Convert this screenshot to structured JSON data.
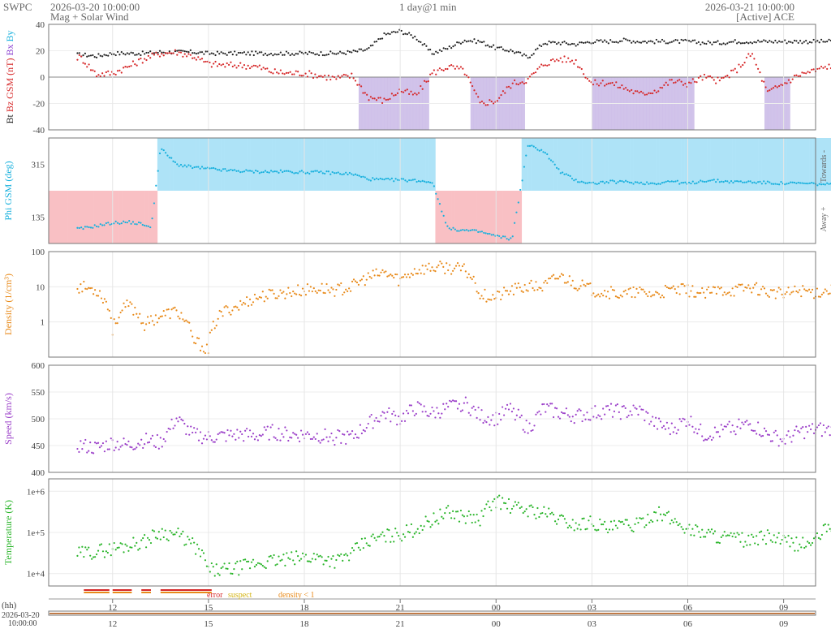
{
  "header": {
    "org": "SWPC",
    "start_time": "2026-03-20 10:00:00",
    "subtitle": "Mag + Solar Wind",
    "span": "1 day@1 min",
    "end_time": "2026-03-21 10:00:00",
    "source": "[Active] ACE"
  },
  "colors": {
    "bt": "#222222",
    "bz": "#d62728",
    "phi": "#17b0dd",
    "density": "#e88a1a",
    "speed": "#9b3fc9",
    "temperature": "#2ab52a",
    "bz_shade": "#c9b8e6",
    "towards_shade": "#aee3f7",
    "away_shade": "#f9c0c4"
  },
  "chart_data": [
    {
      "type": "scatter",
      "panel": "mag",
      "ylabel_parts": [
        "Bt",
        "Bz GSM (nT)",
        "Bx",
        "By"
      ],
      "ylim": [
        -40,
        40
      ],
      "yticks": [
        "40",
        "20",
        "0",
        "-20",
        "-40"
      ],
      "series": [
        {
          "name": "Bt",
          "x": [
            11,
            11.5,
            12,
            12.5,
            13,
            13.5,
            14,
            14.5,
            15,
            15.5,
            16,
            16.5,
            17,
            17.5,
            18,
            18.5,
            19,
            19.5,
            20,
            20.5,
            21,
            21.5,
            22,
            22.5,
            23,
            23.5,
            24,
            24.5,
            25,
            25.5,
            26,
            26.5,
            27,
            27.5,
            28,
            28.5,
            29,
            29.5,
            30,
            30.5,
            31,
            31.5,
            32,
            32.5,
            33,
            33.5,
            34,
            34.5
          ],
          "values": [
            17,
            16,
            18,
            18,
            18,
            19,
            19,
            19,
            18,
            18,
            18,
            18,
            18,
            18,
            18,
            18,
            18,
            19,
            21,
            32,
            35,
            30,
            18,
            22,
            28,
            27,
            22,
            20,
            15,
            26,
            26,
            25,
            27,
            27,
            28,
            27,
            27,
            27,
            27,
            26,
            26,
            27,
            27,
            27,
            27,
            27,
            27,
            27
          ]
        },
        {
          "name": "Bz",
          "x": [
            11,
            11.5,
            12,
            12.5,
            13,
            13.5,
            14,
            14.5,
            15,
            15.5,
            16,
            16.5,
            17,
            17.5,
            18,
            18.5,
            19,
            19.5,
            20,
            20.5,
            21,
            21.5,
            22,
            22.5,
            23,
            23.5,
            24,
            24.5,
            25,
            25.5,
            26,
            26.5,
            27,
            27.5,
            28,
            28.5,
            29,
            29.5,
            30,
            30.5,
            31,
            31.5,
            32,
            32.5,
            33,
            33.5,
            34,
            34.5
          ],
          "values": [
            15,
            2,
            3,
            8,
            14,
            18,
            19,
            16,
            10,
            9,
            9,
            8,
            4,
            3,
            3,
            1,
            -1,
            1,
            -15,
            -18,
            -10,
            -14,
            3,
            8,
            5,
            -20,
            -18,
            -5,
            -2,
            10,
            14,
            12,
            -5,
            -4,
            -8,
            -13,
            -10,
            -3,
            -5,
            0,
            -3,
            5,
            18,
            -12,
            -5,
            2,
            5,
            9
          ]
        }
      ]
    },
    {
      "type": "scatter",
      "panel": "phi",
      "ylabel": "Phi GSM (deg)",
      "ylim": [
        45,
        405
      ],
      "yticks": [
        "315",
        "135"
      ],
      "right_labels": [
        "Towards -",
        "Away +"
      ],
      "series": [
        {
          "name": "Phi",
          "x": [
            11,
            11.5,
            12,
            12.5,
            13,
            13.2,
            13.5,
            14,
            14.5,
            15,
            15.5,
            16,
            16.5,
            17,
            17.5,
            18,
            18.5,
            19,
            19.5,
            20,
            20.5,
            21,
            21.5,
            22,
            22.5,
            23,
            23.5,
            24,
            24.5,
            25,
            25.5,
            26,
            26.5,
            27,
            27.5,
            28,
            28.5,
            29,
            29.5,
            30,
            30.5,
            31,
            31.5,
            32,
            32.5,
            33,
            33.5,
            34,
            34.5
          ],
          "values": [
            95,
            105,
            115,
            118,
            110,
            95,
            370,
            315,
            305,
            300,
            295,
            292,
            290,
            290,
            290,
            288,
            288,
            285,
            282,
            265,
            262,
            262,
            260,
            255,
            95,
            90,
            85,
            70,
            60,
            380,
            360,
            290,
            260,
            250,
            255,
            255,
            252,
            250,
            258,
            248,
            260,
            258,
            255,
            255,
            252,
            250,
            250,
            248,
            245
          ]
        }
      ]
    },
    {
      "type": "scatter",
      "panel": "density",
      "ylabel": "Density (1/cm³)",
      "scale": "log",
      "ylim": [
        0.1,
        100
      ],
      "yticks": [
        "100",
        "10",
        "1"
      ],
      "series": [
        {
          "name": "Density",
          "x": [
            11,
            11.5,
            12,
            12.5,
            13,
            13.5,
            14,
            14.5,
            15,
            15.5,
            16,
            16.5,
            17,
            17.5,
            18,
            18.5,
            19,
            19.5,
            20,
            20.5,
            21,
            21.5,
            22,
            22.5,
            23,
            23.5,
            24,
            24.5,
            25,
            25.5,
            26,
            26.5,
            27,
            27.5,
            28,
            28.5,
            29,
            29.5,
            30,
            30.5,
            31,
            31.5,
            32,
            32.5,
            33,
            33.5,
            34,
            34.5
          ],
          "values": [
            10,
            8,
            0.6,
            3,
            0.8,
            1.5,
            2,
            0.3,
            0.15,
            2,
            3,
            5,
            6,
            7,
            8,
            9,
            8,
            10,
            18,
            25,
            15,
            30,
            35,
            35,
            30,
            6,
            5,
            8,
            10,
            10,
            20,
            12,
            8,
            7,
            6,
            7,
            6,
            8,
            8,
            6,
            8,
            8,
            10,
            7,
            6,
            8,
            7,
            8
          ]
        }
      ]
    },
    {
      "type": "scatter",
      "panel": "speed",
      "ylabel": "Speed (km/s)",
      "ylim": [
        400,
        600
      ],
      "yticks": [
        "600",
        "550",
        "500",
        "450",
        "400"
      ],
      "series": [
        {
          "name": "Speed",
          "x": [
            11,
            11.5,
            12,
            12.5,
            13,
            13.5,
            14,
            14.5,
            15,
            15.5,
            16,
            16.5,
            17,
            17.5,
            18,
            18.5,
            19,
            19.5,
            20,
            20.5,
            21,
            21.5,
            22,
            22.5,
            23,
            23.5,
            24,
            24.5,
            25,
            25.5,
            26,
            26.5,
            27,
            27.5,
            28,
            28.5,
            29,
            29.5,
            30,
            30.5,
            31,
            31.5,
            32,
            32.5,
            33,
            33.5,
            34,
            34.5
          ],
          "values": [
            450,
            445,
            455,
            450,
            460,
            455,
            500,
            470,
            465,
            468,
            470,
            468,
            475,
            470,
            470,
            468,
            465,
            465,
            490,
            510,
            500,
            520,
            510,
            520,
            530,
            505,
            500,
            520,
            480,
            520,
            510,
            505,
            510,
            515,
            512,
            515,
            490,
            480,
            500,
            470,
            475,
            485,
            490,
            470,
            460,
            475,
            480,
            478
          ]
        }
      ]
    },
    {
      "type": "scatter",
      "panel": "temperature",
      "ylabel": "Temperature (K)",
      "scale": "log",
      "ylim": [
        5000,
        2000000
      ],
      "yticks": [
        "1e+6",
        "1e+5",
        "1e+4"
      ],
      "series": [
        {
          "name": "Temperature",
          "x": [
            11,
            11.5,
            12,
            12.5,
            13,
            13.5,
            14,
            14.5,
            15,
            15.5,
            16,
            16.5,
            17,
            17.5,
            18,
            18.5,
            19,
            19.5,
            20,
            20.5,
            21,
            21.5,
            22,
            22.5,
            23,
            23.5,
            24,
            24.5,
            25,
            25.5,
            26,
            26.5,
            27,
            27.5,
            28,
            28.5,
            29,
            29.5,
            30,
            30.5,
            31,
            31.5,
            32,
            32.5,
            33,
            33.5,
            34,
            34.5
          ],
          "values": [
            30000,
            35000,
            40000,
            50000,
            60000,
            100000,
            90000,
            50000,
            12000,
            12000,
            14000,
            18000,
            20000,
            22000,
            25000,
            25000,
            20000,
            30000,
            60000,
            80000,
            90000,
            120000,
            200000,
            300000,
            250000,
            200000,
            600000,
            400000,
            350000,
            300000,
            200000,
            150000,
            180000,
            120000,
            150000,
            150000,
            300000,
            200000,
            120000,
            100000,
            80000,
            70000,
            60000,
            80000,
            60000,
            50000,
            60000,
            150000
          ]
        }
      ]
    }
  ],
  "quality": {
    "error_label": "error",
    "suspect_label": "suspect",
    "density_label": "density < 1",
    "x_unit_label": "(hh)"
  },
  "time_axis": {
    "labels": [
      "12",
      "15",
      "18",
      "21",
      "00",
      "03",
      "06",
      "09"
    ],
    "hours": [
      12,
      15,
      18,
      21,
      24,
      27,
      30,
      33
    ],
    "start_hour": 10,
    "end_hour": 34
  },
  "overview": {
    "date": "2026-03-20",
    "time": "10:00:00"
  }
}
